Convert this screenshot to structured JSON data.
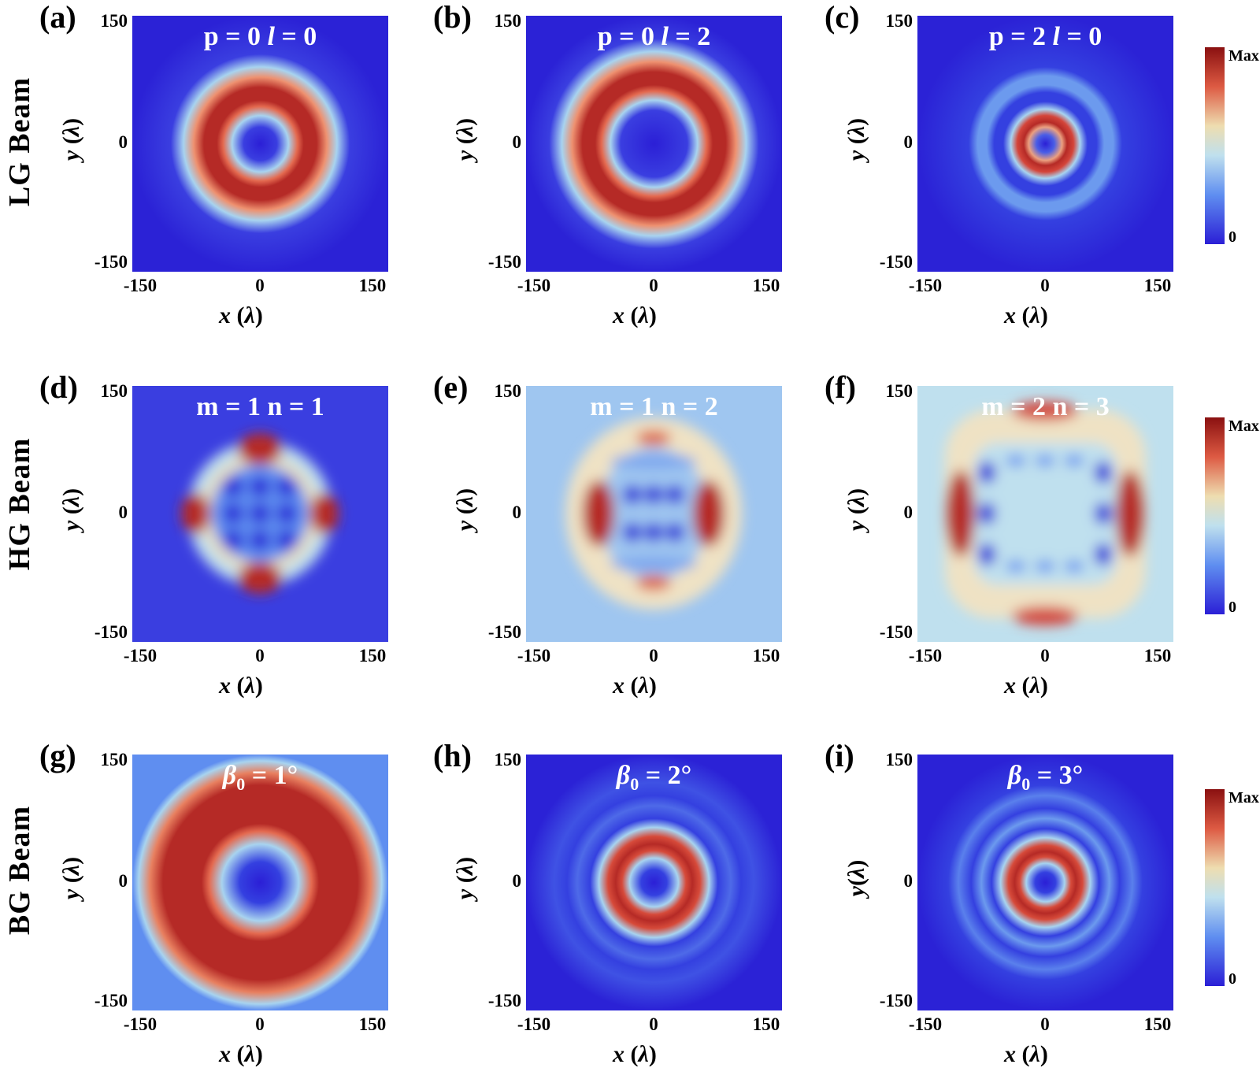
{
  "row_labels": [
    "LG  Beam",
    "HG  Beam",
    "BG  Beam"
  ],
  "colorbar": {
    "max_label": "Max",
    "min_label": "0"
  },
  "chart_data": [
    {
      "id": "a",
      "type": "heatmap",
      "tag": "(a)",
      "title": "p = 0   l = 0",
      "xlabel": "x (λ)",
      "ylabel": "y (λ)",
      "xticks": [
        "-150",
        "0",
        "150"
      ],
      "yticks": [
        "150",
        "0",
        "-150"
      ],
      "xlim": [
        -150,
        150
      ],
      "ylim": [
        -150,
        150
      ]
    },
    {
      "id": "b",
      "type": "heatmap",
      "tag": "(b)",
      "title": "p = 0  l = 2",
      "xlabel": "x (λ)",
      "ylabel": "y (λ)",
      "xticks": [
        "-150",
        "0",
        "150"
      ],
      "yticks": [
        "150",
        "0",
        "-150"
      ],
      "xlim": [
        -150,
        150
      ],
      "ylim": [
        -150,
        150
      ]
    },
    {
      "id": "c",
      "type": "heatmap",
      "tag": "(c)",
      "title": "p = 2  l = 0",
      "xlabel": "x (λ)",
      "ylabel": "y (λ)",
      "xticks": [
        "-150",
        "0",
        "150"
      ],
      "yticks": [
        "150",
        "0",
        "-150"
      ],
      "xlim": [
        -150,
        150
      ],
      "ylim": [
        -150,
        150
      ]
    },
    {
      "id": "d",
      "type": "heatmap",
      "tag": "(d)",
      "title": "m = 1  n = 1",
      "xlabel": "x (λ)",
      "ylabel": "y (λ)",
      "xticks": [
        "-150",
        "0",
        "150"
      ],
      "yticks": [
        "150",
        "0",
        "-150"
      ],
      "xlim": [
        -150,
        150
      ],
      "ylim": [
        -150,
        150
      ]
    },
    {
      "id": "e",
      "type": "heatmap",
      "tag": "(e)",
      "title": "m = 1  n = 2",
      "xlabel": "x (λ)",
      "ylabel": "y (λ)",
      "xticks": [
        "-150",
        "0",
        "150"
      ],
      "yticks": [
        "150",
        "0",
        "-150"
      ],
      "xlim": [
        -150,
        150
      ],
      "ylim": [
        -150,
        150
      ]
    },
    {
      "id": "f",
      "type": "heatmap",
      "tag": "(f)",
      "title": "m = 2  n = 3",
      "xlabel": "x (λ)",
      "ylabel": "y (λ)",
      "xticks": [
        "-150",
        "0",
        "150"
      ],
      "yticks": [
        "150",
        "0",
        "-150"
      ],
      "xlim": [
        -150,
        150
      ],
      "ylim": [
        -150,
        150
      ]
    },
    {
      "id": "g",
      "type": "heatmap",
      "tag": "(g)",
      "title": "β0 = 1°",
      "xlabel": "x (λ)",
      "ylabel": "y (λ)",
      "xticks": [
        "-150",
        "0",
        "150"
      ],
      "yticks": [
        "150",
        "0",
        "-150"
      ],
      "xlim": [
        -150,
        150
      ],
      "ylim": [
        -150,
        150
      ]
    },
    {
      "id": "h",
      "type": "heatmap",
      "tag": "(h)",
      "title": "β0 = 2°",
      "xlabel": "x (λ)",
      "ylabel": "y (λ)",
      "xticks": [
        "-150",
        "0",
        "150"
      ],
      "yticks": [
        "150",
        "0",
        "-150"
      ],
      "xlim": [
        -150,
        150
      ],
      "ylim": [
        -150,
        150
      ]
    },
    {
      "id": "i",
      "type": "heatmap",
      "tag": "(i)",
      "title": "β0 = 3°",
      "xlabel": "x (λ)",
      "ylabel": "y(λ)",
      "xticks": [
        "-150",
        "0",
        "150"
      ],
      "yticks": [
        "150",
        "0",
        "-150"
      ],
      "xlim": [
        -150,
        150
      ],
      "ylim": [
        -150,
        150
      ]
    }
  ]
}
